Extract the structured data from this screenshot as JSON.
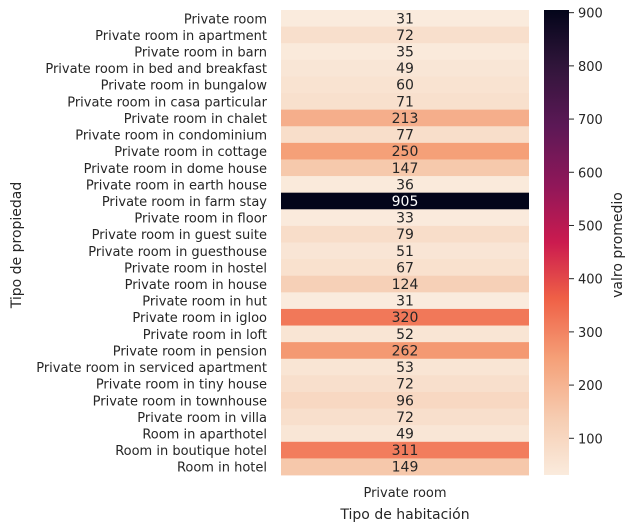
{
  "chart_data": {
    "type": "heatmap",
    "title": "",
    "xlabel": "Tipo de habitación",
    "ylabel": "Tipo de propiedad",
    "columns": [
      "Private room"
    ],
    "rows": [
      "Private room",
      "Private room in apartment",
      "Private room in barn",
      "Private room in bed and breakfast",
      "Private room in bungalow",
      "Private room in casa particular",
      "Private room in chalet",
      "Private room in condominium",
      "Private room in cottage",
      "Private room in dome house",
      "Private room in earth house",
      "Private room in farm stay",
      "Private room in floor",
      "Private room in guest suite",
      "Private room in guesthouse",
      "Private room in hostel",
      "Private room in house",
      "Private room in hut",
      "Private room in igloo",
      "Private room in loft",
      "Private room in pension",
      "Private room in serviced apartment",
      "Private room in tiny house",
      "Private room in townhouse",
      "Private room in villa",
      "Room in aparthotel",
      "Room in boutique hotel",
      "Room in hotel"
    ],
    "values": [
      31,
      72,
      35,
      49,
      60,
      71,
      213,
      77,
      250,
      147,
      36,
      905,
      33,
      79,
      51,
      67,
      124,
      31,
      320,
      52,
      262,
      53,
      72,
      96,
      72,
      49,
      311,
      149
    ],
    "colorbar": {
      "label": "valro promedio",
      "range": [
        31,
        905
      ],
      "ticks": [
        100,
        200,
        300,
        400,
        500,
        600,
        700,
        800,
        900
      ],
      "colormap": "rocket_r"
    }
  }
}
